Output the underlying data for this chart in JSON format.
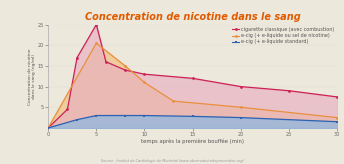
{
  "title": "Concentration de nicotine dans le sang",
  "title_color": "#e05a00",
  "xlabel": "temps après la première bouffée (min)",
  "ylabel": "Concentration de nicotine\ndans le sang (ng/ml)",
  "background_color": "#ede8dc",
  "plot_bg_color": "#ede8dc",
  "xlim": [
    0,
    30
  ],
  "ylim": [
    0,
    25
  ],
  "yticks": [
    5,
    10,
    15,
    20,
    25
  ],
  "xticks": [
    0,
    5,
    10,
    15,
    20,
    25,
    30
  ],
  "line_pink_x": [
    0,
    2,
    3,
    5,
    6,
    8,
    10,
    15,
    20,
    25,
    30
  ],
  "line_pink_y": [
    0,
    4.5,
    17,
    25,
    16,
    14,
    13,
    12,
    10,
    9,
    7.5
  ],
  "line_pink_color": "#cc2255",
  "line_pink_fill_color": "#e8b0c0",
  "line_orange_x": [
    0,
    5,
    8,
    10,
    13,
    20,
    30
  ],
  "line_orange_y": [
    0,
    20.5,
    15,
    11,
    6.5,
    5,
    2.5
  ],
  "line_orange_color": "#e89040",
  "line_orange_fill_color": "#f0c890",
  "line_blue_x": [
    0,
    3,
    5,
    8,
    10,
    15,
    20,
    30
  ],
  "line_blue_y": [
    0,
    2,
    3,
    3,
    3,
    2.8,
    2.5,
    1.5
  ],
  "line_blue_color": "#3060b0",
  "line_blue_fill_color": "#90b8e0",
  "legend_entries": [
    "cigarette classique (avec combustion)",
    "e-cig (+ e-liquide ou sel de nicotine)",
    "e-cig (+ e-liquide standard)"
  ],
  "source_text": "Source : Institut de Cardiologie de Montréal (www.observatoiredeprevention.org)"
}
